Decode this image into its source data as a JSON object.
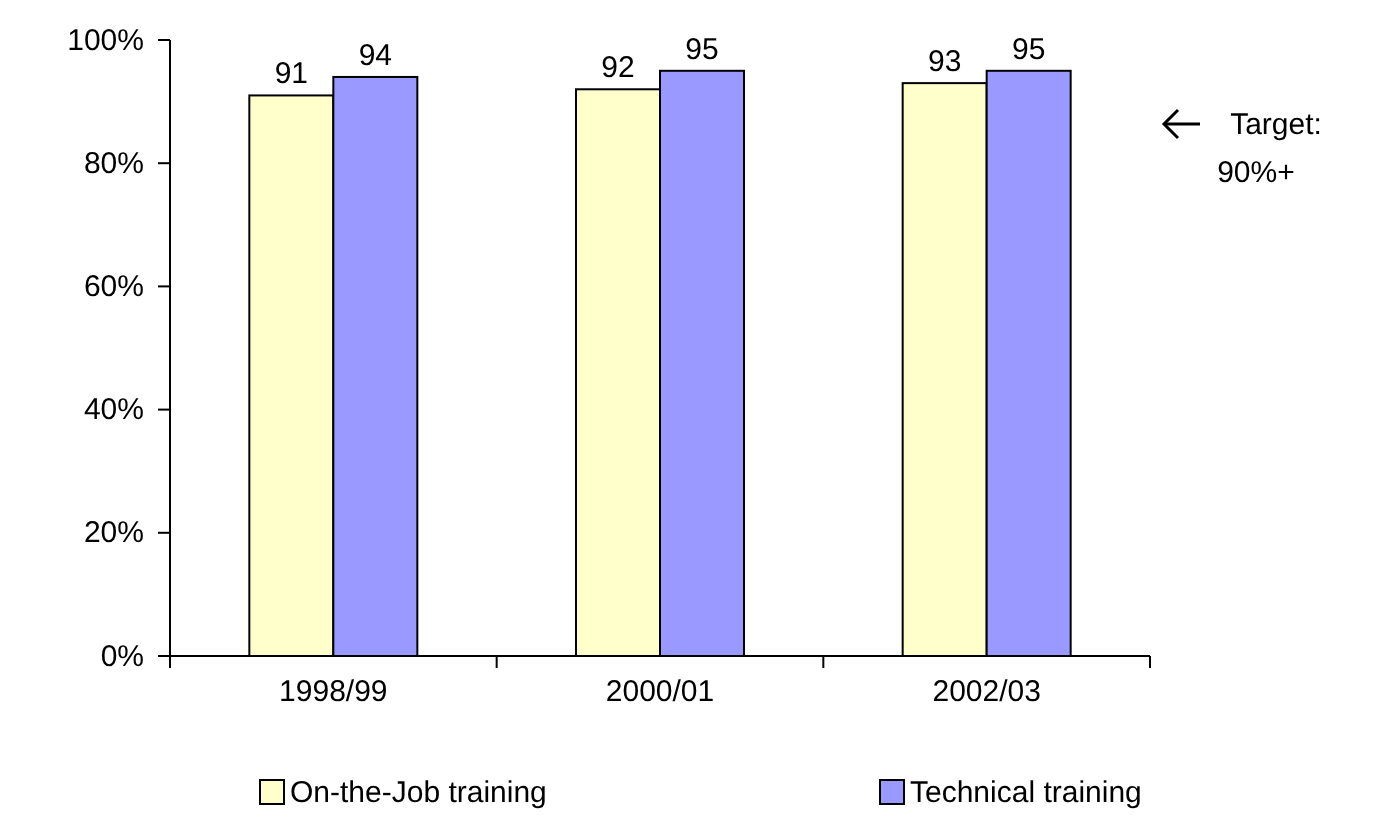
{
  "chart_data": {
    "type": "bar",
    "categories": [
      "1998/99",
      "2000/01",
      "2002/03"
    ],
    "series": [
      {
        "name": "On-the-Job training",
        "color": "#ffffcc",
        "values": [
          91,
          92,
          93
        ]
      },
      {
        "name": "Technical training",
        "color": "#9999ff",
        "values": [
          94,
          95,
          95
        ]
      }
    ],
    "ylim": [
      0,
      100
    ],
    "yticks": [
      {
        "value": 0,
        "label": "0%"
      },
      {
        "value": 20,
        "label": "20%"
      },
      {
        "value": 40,
        "label": "40%"
      },
      {
        "value": 60,
        "label": "60%"
      },
      {
        "value": 80,
        "label": "80%"
      },
      {
        "value": 100,
        "label": "100%"
      }
    ],
    "data_labels": true,
    "legend": "bottom",
    "grid": false,
    "annotations": [
      "Target: 90%+"
    ]
  }
}
